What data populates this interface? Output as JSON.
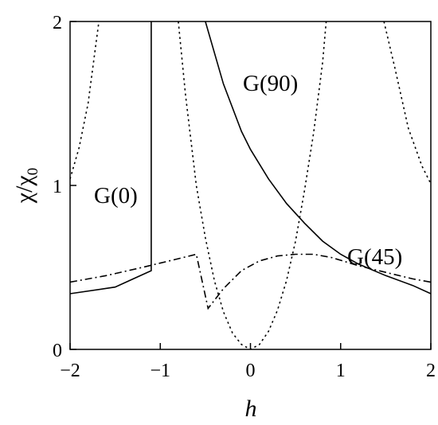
{
  "chart_data": {
    "type": "line",
    "xlabel": "h",
    "ylabel": "χ/χ",
    "ylabel_sub": "0",
    "xlim": [
      -2,
      2
    ],
    "ylim": [
      0,
      2
    ],
    "xticks": [
      {
        "value": -2,
        "label": "−2"
      },
      {
        "value": -1,
        "label": "−1"
      },
      {
        "value": 0,
        "label": "0"
      },
      {
        "value": 1,
        "label": "1"
      },
      {
        "value": 2,
        "label": "2"
      }
    ],
    "yticks": [
      {
        "value": 0,
        "label": "0"
      },
      {
        "value": 1,
        "label": "1"
      },
      {
        "value": 2,
        "label": "2"
      }
    ],
    "grid": false,
    "legend": "none",
    "series": [
      {
        "name": "G(0)",
        "style": "solid",
        "segments": [
          [
            [
              -2.0,
              0.34
            ],
            [
              -1.5,
              0.38
            ],
            [
              -1.3,
              0.43
            ],
            [
              -1.1,
              0.48
            ],
            [
              -1.1,
              2.0
            ]
          ],
          [
            [
              -0.5,
              2.0
            ],
            [
              -0.3,
              1.62
            ],
            [
              -0.1,
              1.33
            ],
            [
              0.0,
              1.22
            ],
            [
              0.2,
              1.04
            ],
            [
              0.4,
              0.89
            ],
            [
              0.6,
              0.77
            ],
            [
              0.8,
              0.66
            ],
            [
              1.0,
              0.58
            ],
            [
              1.2,
              0.52
            ],
            [
              1.5,
              0.45
            ],
            [
              1.8,
              0.39
            ],
            [
              2.0,
              0.34
            ]
          ]
        ]
      },
      {
        "name": "G(90)",
        "style": "dotted",
        "segments": [
          [
            [
              -2.0,
              1.04
            ],
            [
              -1.9,
              1.23
            ],
            [
              -1.8,
              1.5
            ],
            [
              -1.7,
              1.92
            ],
            [
              -1.68,
              2.0
            ]
          ],
          [
            [
              -0.8,
              2.0
            ],
            [
              -0.72,
              1.55
            ],
            [
              -0.6,
              1.0
            ],
            [
              -0.5,
              0.68
            ],
            [
              -0.4,
              0.42
            ],
            [
              -0.3,
              0.23
            ],
            [
              -0.2,
              0.1
            ],
            [
              -0.1,
              0.03
            ],
            [
              0.0,
              0.0
            ],
            [
              0.1,
              0.03
            ],
            [
              0.2,
              0.11
            ],
            [
              0.3,
              0.24
            ],
            [
              0.4,
              0.42
            ],
            [
              0.5,
              0.66
            ],
            [
              0.6,
              0.97
            ],
            [
              0.7,
              1.32
            ],
            [
              0.8,
              1.75
            ],
            [
              0.84,
              2.0
            ]
          ],
          [
            [
              1.48,
              2.0
            ],
            [
              1.6,
              1.72
            ],
            [
              1.75,
              1.35
            ],
            [
              1.9,
              1.12
            ],
            [
              2.0,
              1.01
            ]
          ]
        ]
      },
      {
        "name": "G(45)",
        "style": "dashdot",
        "segments": [
          [
            [
              -2.0,
              0.41
            ],
            [
              -1.6,
              0.45
            ],
            [
              -1.2,
              0.5
            ],
            [
              -0.9,
              0.54
            ],
            [
              -0.6,
              0.58
            ],
            [
              -0.47,
              0.25
            ],
            [
              -0.3,
              0.37
            ],
            [
              -0.1,
              0.48
            ],
            [
              0.1,
              0.54
            ],
            [
              0.3,
              0.57
            ],
            [
              0.5,
              0.58
            ],
            [
              0.7,
              0.58
            ],
            [
              0.9,
              0.56
            ],
            [
              1.2,
              0.51
            ],
            [
              1.5,
              0.47
            ],
            [
              1.8,
              0.43
            ],
            [
              2.0,
              0.41
            ]
          ]
        ]
      }
    ]
  }
}
